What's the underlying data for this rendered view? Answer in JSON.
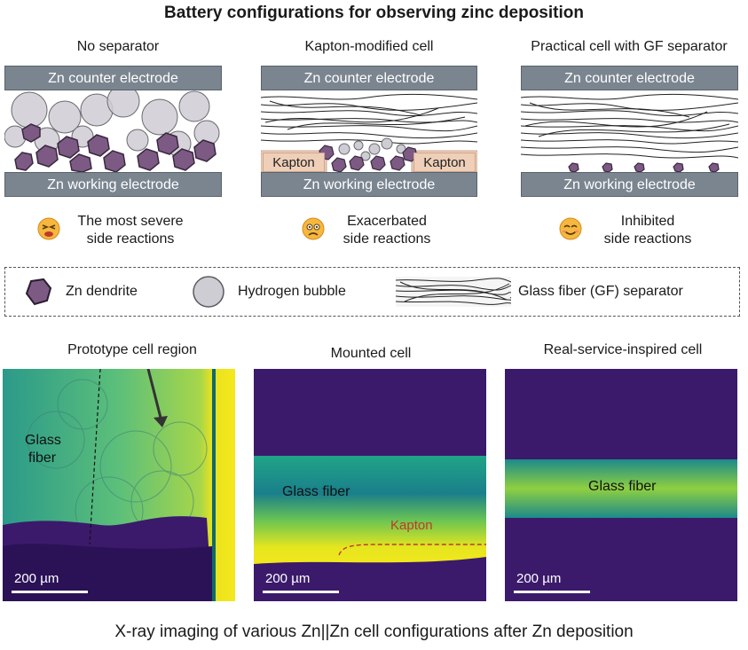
{
  "title": "Battery configurations for observing zinc deposition",
  "panels": [
    {
      "title": "No separator",
      "counter": "Zn counter electrode",
      "working": "Zn working electrode",
      "status1": "The most severe",
      "status2": "side reactions"
    },
    {
      "title": "Kapton-modified cell",
      "counter": "Zn counter electrode",
      "working": "Zn working electrode",
      "kapton_left": "Kapton",
      "kapton_right": "Kapton",
      "status1": "Exacerbated",
      "status2": "side reactions"
    },
    {
      "title": "Practical cell with GF separator",
      "counter": "Zn counter electrode",
      "working": "Zn working electrode",
      "status1": "Inhibited",
      "status2": "side reactions"
    }
  ],
  "legend": {
    "dendrite": "Zn dendrite",
    "bubble": "Hydrogen bubble",
    "gf": "Glass fiber (GF) separator"
  },
  "images": [
    {
      "title": "Prototype cell region",
      "label": "Glass",
      "label2": "fiber",
      "scale": "200 µm"
    },
    {
      "title": "Mounted cell",
      "label": "Glass fiber",
      "kapton": "Kapton",
      "scale": "200 µm"
    },
    {
      "title": "Real-service-inspired cell",
      "label": "Glass fiber",
      "scale": "200 µm"
    }
  ],
  "caption": "X-ray imaging of various Zn||Zn cell configurations after Zn deposition",
  "colors": {
    "electrode": "#7a8590",
    "dendrite": "#7d5a84",
    "bubble": "#c9c7cf",
    "kapton": "#efcfb8",
    "xray_dark": "#3b1a6b",
    "xray_mid": "#1f8a8a",
    "xray_bright": "#f2e51c"
  }
}
